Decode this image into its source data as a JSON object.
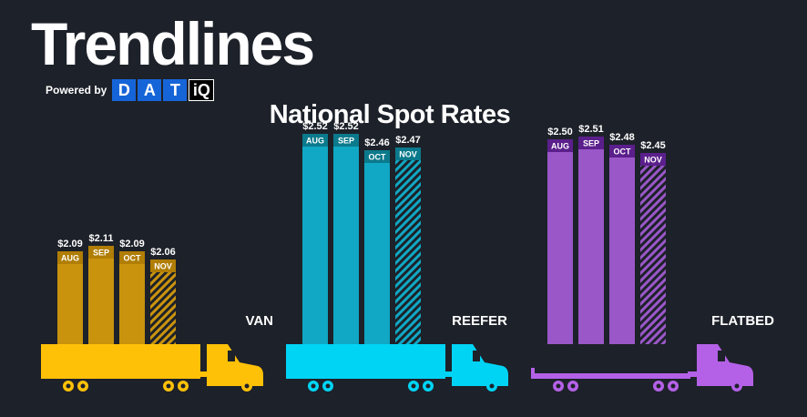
{
  "header": {
    "brand": "Trendlines",
    "powered_by": "Powered by",
    "logo_letters": [
      "D",
      "A",
      "T"
    ],
    "logo_iq": "iQ"
  },
  "chart_data": {
    "type": "bar",
    "title": "National Spot Rates",
    "groups": [
      {
        "name": "VAN",
        "color": "#ffc107",
        "bar_color": "#c9930e",
        "label_bg": "#b07d05",
        "months": [
          "AUG",
          "SEP",
          "OCT",
          "NOV"
        ],
        "values": [
          2.09,
          2.11,
          2.09,
          2.06
        ],
        "labels": [
          "$2.09",
          "$2.11",
          "$2.09",
          "$2.06"
        ],
        "truck": "van"
      },
      {
        "name": "REEFER",
        "color": "#00d4f5",
        "bar_color": "#10a8c4",
        "label_bg": "#0b7a8c",
        "months": [
          "AUG",
          "SEP",
          "OCT",
          "NOV"
        ],
        "values": [
          2.52,
          2.52,
          2.46,
          2.47
        ],
        "labels": [
          "$2.52",
          "$2.52",
          "$2.46",
          "$2.47"
        ],
        "truck": "van"
      },
      {
        "name": "FLATBED",
        "color": "#b461e8",
        "bar_color": "#9a57c8",
        "label_bg": "#5b1f8c",
        "months": [
          "AUG",
          "SEP",
          "OCT",
          "NOV"
        ],
        "values": [
          2.5,
          2.51,
          2.48,
          2.45
        ],
        "labels": [
          "$2.50",
          "$2.51",
          "$2.48",
          "$2.45"
        ],
        "truck": "flatbed"
      }
    ],
    "hatched_month": "NOV",
    "value_unit": "USD per mile"
  }
}
